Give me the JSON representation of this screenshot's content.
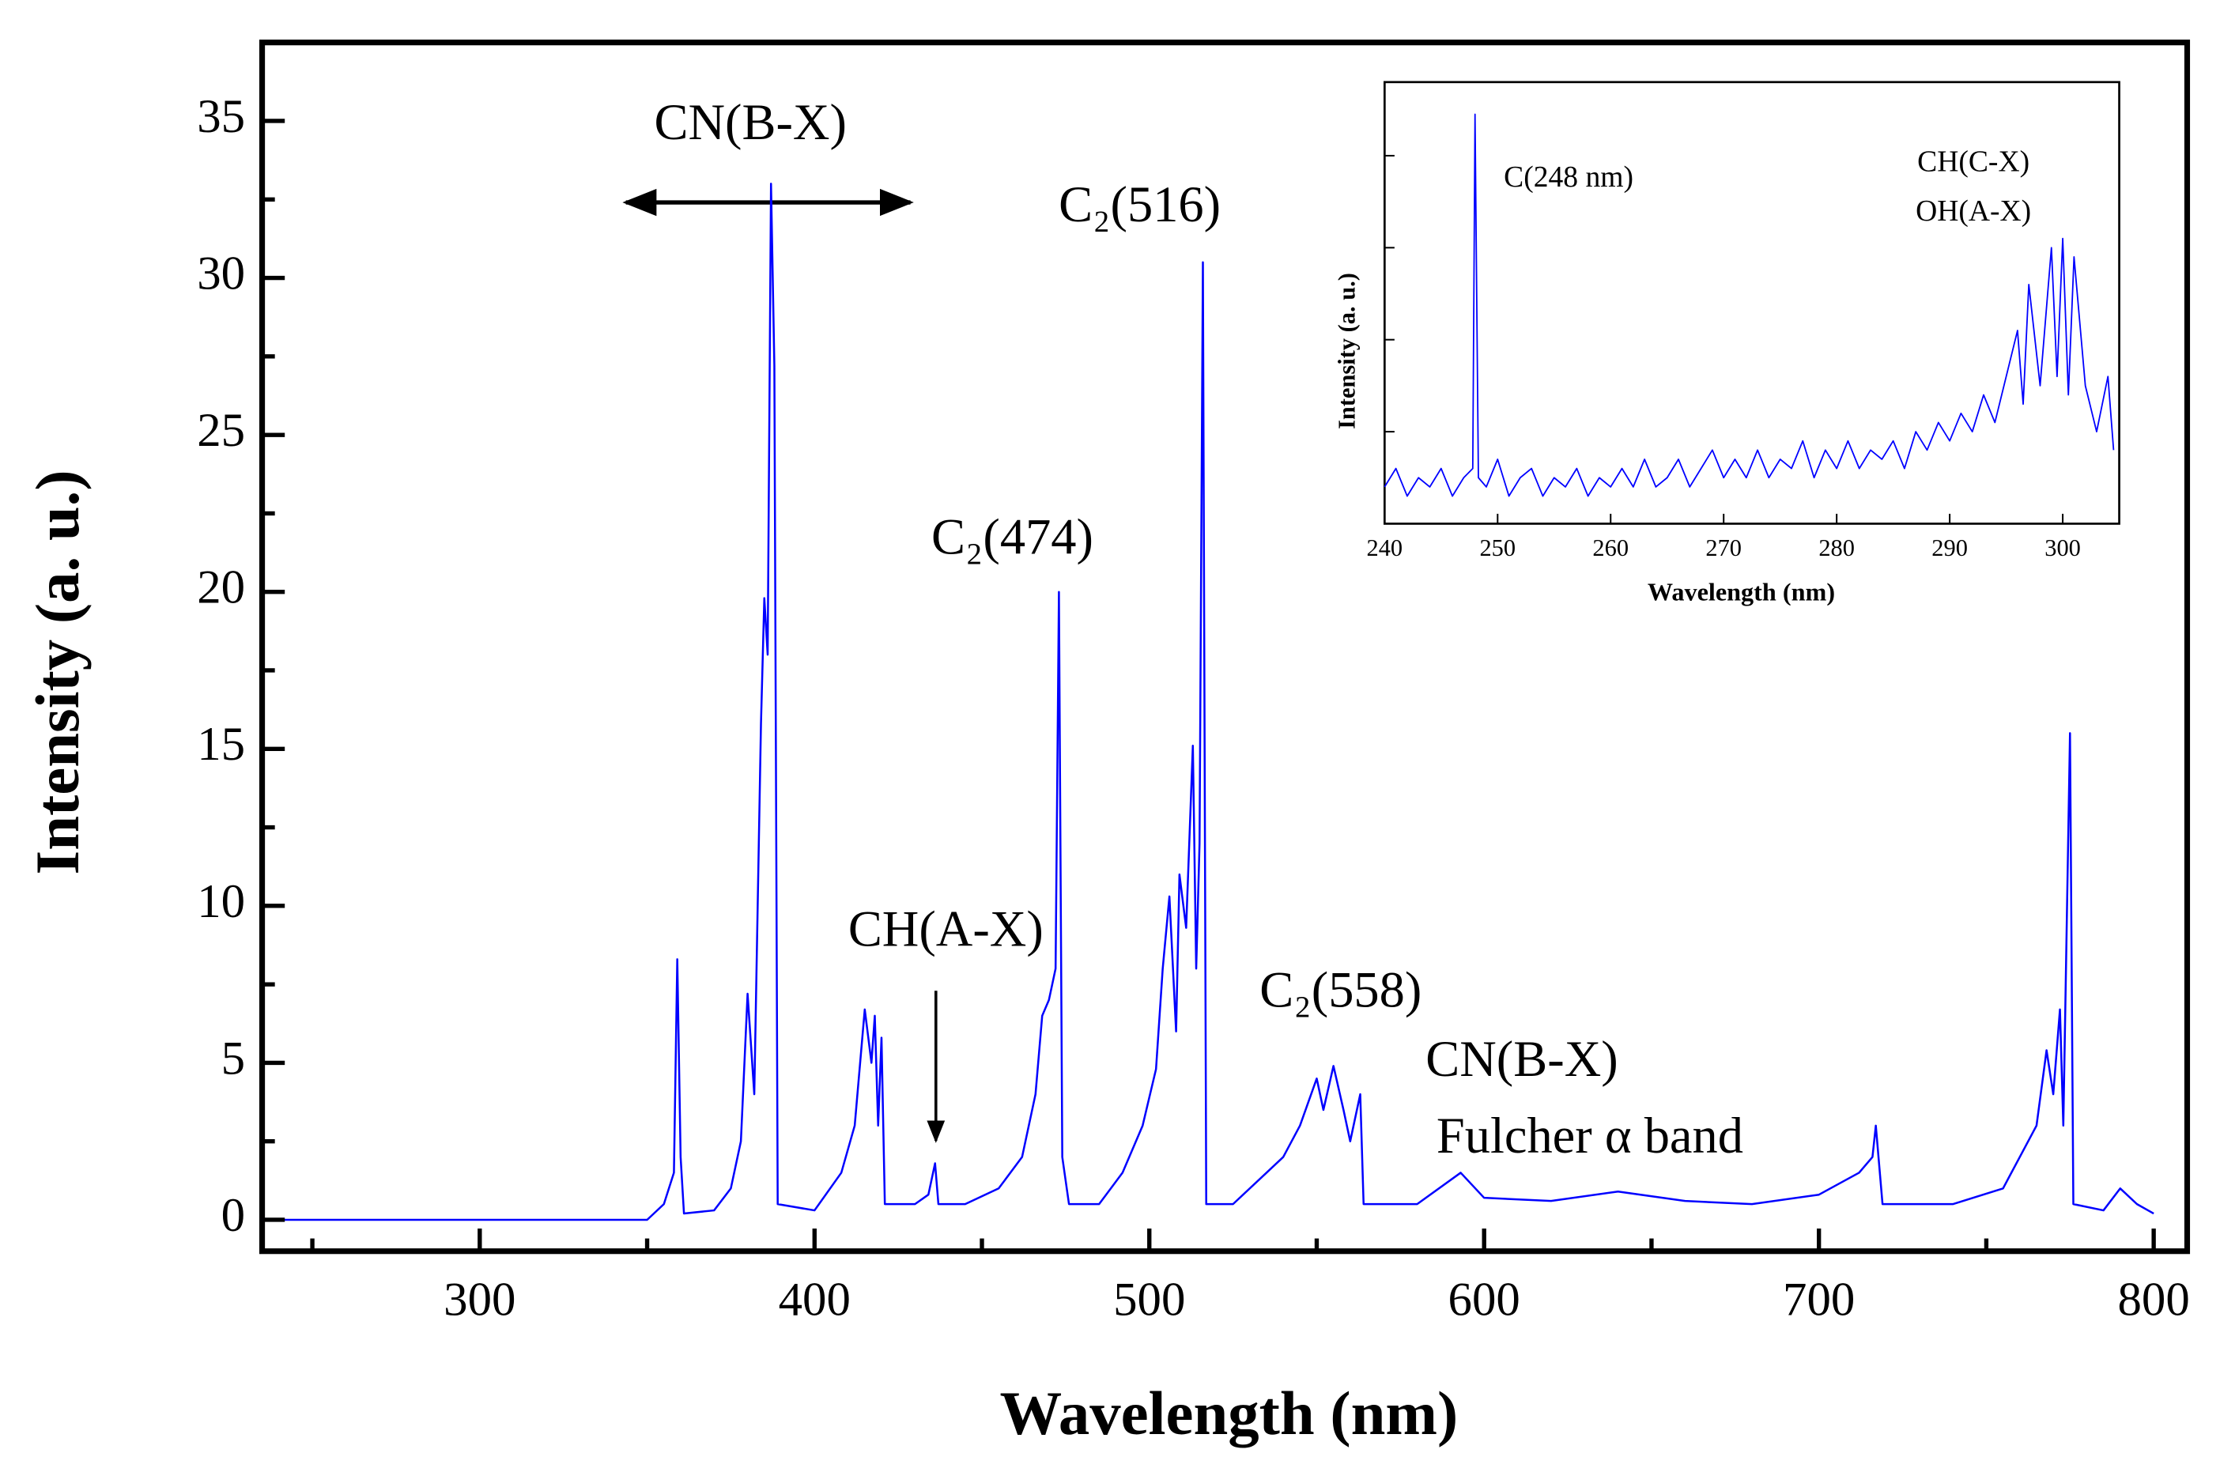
{
  "chart_data": [
    {
      "type": "line",
      "x_label": "Wavelength (nm)",
      "y_label": "Intensity (a. u.)",
      "xlim": [
        235,
        810
      ],
      "xticks": [
        300,
        400,
        500,
        600,
        700,
        800
      ],
      "xminorticks": [
        250,
        350,
        450,
        550,
        650,
        750
      ],
      "ylim": [
        -1,
        37.5
      ],
      "yticks": [
        0,
        5,
        10,
        15,
        20,
        25,
        30,
        35
      ],
      "yminorticks": [
        2.5,
        7.5,
        12.5,
        17.5,
        22.5,
        27.5,
        32.5
      ],
      "annotations": [
        "CN(B-X)",
        "C₂(516)",
        "C₂(474)",
        "CH(A-X)",
        "C₂(558)",
        "CN(B-X)",
        "Fulcher α band"
      ],
      "series": [
        {
          "color": "#0000ff",
          "x": [
            235,
            350,
            355,
            358,
            359,
            360,
            361,
            370,
            375,
            378,
            380,
            382,
            384,
            385,
            386,
            387,
            388,
            389,
            400,
            408,
            412,
            415,
            417,
            418,
            419,
            420,
            421,
            430,
            434,
            436,
            437,
            445,
            455,
            462,
            466,
            468,
            470,
            472,
            473,
            474,
            476,
            485,
            492,
            498,
            502,
            504,
            506,
            508,
            509,
            511,
            513,
            514,
            515,
            516,
            517,
            525,
            535,
            540,
            545,
            550,
            552,
            555,
            558,
            560,
            563,
            564,
            580,
            593,
            600,
            620,
            640,
            660,
            680,
            700,
            712,
            716,
            717,
            719,
            740,
            755,
            760,
            765,
            768,
            770,
            772,
            773,
            775,
            776,
            785,
            790,
            795,
            800
          ],
          "values": [
            0,
            0,
            0.5,
            1.5,
            8.3,
            2,
            0.2,
            0.3,
            1,
            2.5,
            7.2,
            4,
            15.8,
            19.8,
            18,
            33,
            27.2,
            0.5,
            0.3,
            1.5,
            3,
            6.7,
            5,
            6.5,
            3,
            5.8,
            0.5,
            0.5,
            0.8,
            1.8,
            0.5,
            0.5,
            1,
            2,
            4,
            6.5,
            7,
            8,
            20,
            2,
            0.5,
            0.5,
            1.5,
            3,
            4.8,
            8,
            10.3,
            6,
            11,
            9.3,
            15.1,
            8,
            12,
            30.5,
            0.5,
            0.5,
            1.5,
            2,
            3,
            4.5,
            3.5,
            4.9,
            3.5,
            2.5,
            4,
            0.5,
            0.5,
            1.5,
            0.7,
            0.6,
            0.9,
            0.6,
            0.5,
            0.8,
            1.5,
            2,
            3,
            0.5,
            0.5,
            1,
            2,
            3,
            5.4,
            4,
            6.7,
            3,
            15.5,
            0.5,
            0.3,
            1,
            0.5,
            0.2
          ]
        }
      ]
    },
    {
      "type": "line",
      "x_label": "Wavelength (nm)",
      "y_label": "Intensity (a. u.)",
      "xlim": [
        240,
        305
      ],
      "xticks": [
        240,
        250,
        260,
        270,
        280,
        290,
        300
      ],
      "ylim": [
        0,
        4.8
      ],
      "yminorticks": [
        1,
        2,
        3,
        4
      ],
      "annotations": [
        "C(248 nm)",
        "CH(C-X)",
        "OH(A-X)"
      ],
      "series": [
        {
          "color": "#0000ff",
          "x": [
            240,
            241,
            242,
            243,
            244,
            245,
            246,
            247,
            247.8,
            248,
            248.3,
            249,
            250,
            251,
            252,
            253,
            254,
            255,
            256,
            257,
            258,
            259,
            260,
            261,
            262,
            263,
            264,
            265,
            266,
            267,
            268,
            269,
            270,
            271,
            272,
            273,
            274,
            275,
            276,
            277,
            278,
            279,
            280,
            281,
            282,
            283,
            284,
            285,
            286,
            287,
            288,
            289,
            290,
            291,
            292,
            293,
            294,
            295,
            296,
            296.5,
            297,
            298,
            299,
            299.5,
            300,
            300.5,
            301,
            302,
            303,
            304,
            304.5
          ],
          "values": [
            0.4,
            0.6,
            0.3,
            0.5,
            0.4,
            0.6,
            0.3,
            0.5,
            0.6,
            4.45,
            0.5,
            0.4,
            0.7,
            0.3,
            0.5,
            0.6,
            0.3,
            0.5,
            0.4,
            0.6,
            0.3,
            0.5,
            0.4,
            0.6,
            0.4,
            0.7,
            0.4,
            0.5,
            0.7,
            0.4,
            0.6,
            0.8,
            0.5,
            0.7,
            0.5,
            0.8,
            0.5,
            0.7,
            0.6,
            0.9,
            0.5,
            0.8,
            0.6,
            0.9,
            0.6,
            0.8,
            0.7,
            0.9,
            0.6,
            1.0,
            0.8,
            1.1,
            0.9,
            1.2,
            1.0,
            1.4,
            1.1,
            1.6,
            2.1,
            1.3,
            2.6,
            1.5,
            3.0,
            1.6,
            3.1,
            1.4,
            2.9,
            1.5,
            1.0,
            1.6,
            0.8
          ]
        }
      ]
    }
  ]
}
